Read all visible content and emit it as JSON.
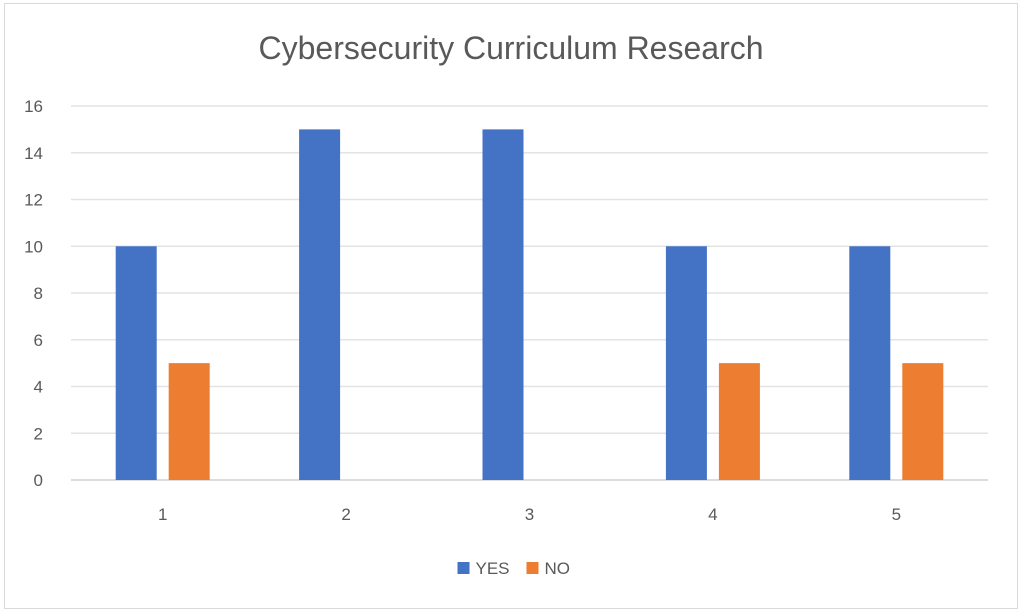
{
  "chart_data": {
    "type": "bar",
    "title": "Cybersecurity Curriculum Research",
    "categories": [
      "1",
      "2",
      "3",
      "4",
      "5"
    ],
    "series": [
      {
        "name": "YES",
        "color": "#4472c4",
        "values": [
          10,
          15,
          15,
          10,
          10
        ]
      },
      {
        "name": "NO",
        "color": "#ed7d31",
        "values": [
          5,
          0,
          0,
          5,
          5
        ]
      }
    ],
    "xlabel": "",
    "ylabel": "",
    "ylim": [
      0,
      16
    ],
    "yticks": [
      0,
      2,
      4,
      6,
      8,
      10,
      12,
      14,
      16
    ],
    "grid": true,
    "legend_position": "bottom"
  }
}
